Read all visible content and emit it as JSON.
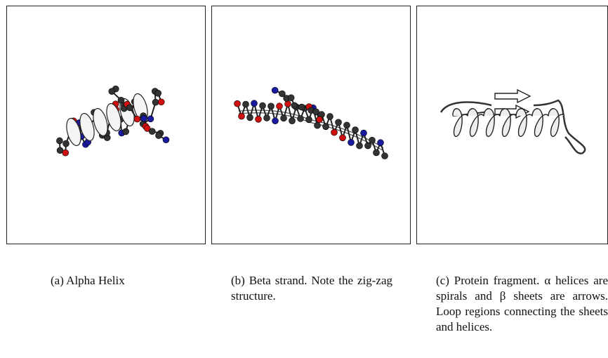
{
  "figure": {
    "panels": [
      {
        "caption": "(a) Alpha Helix"
      },
      {
        "caption": "(b) Beta strand. Note the zig-zag structure."
      },
      {
        "caption": "(c) Protein fragment. α helices are spirals and β sheets are arrows. Loop regions connecting the sheets and helices."
      }
    ]
  }
}
